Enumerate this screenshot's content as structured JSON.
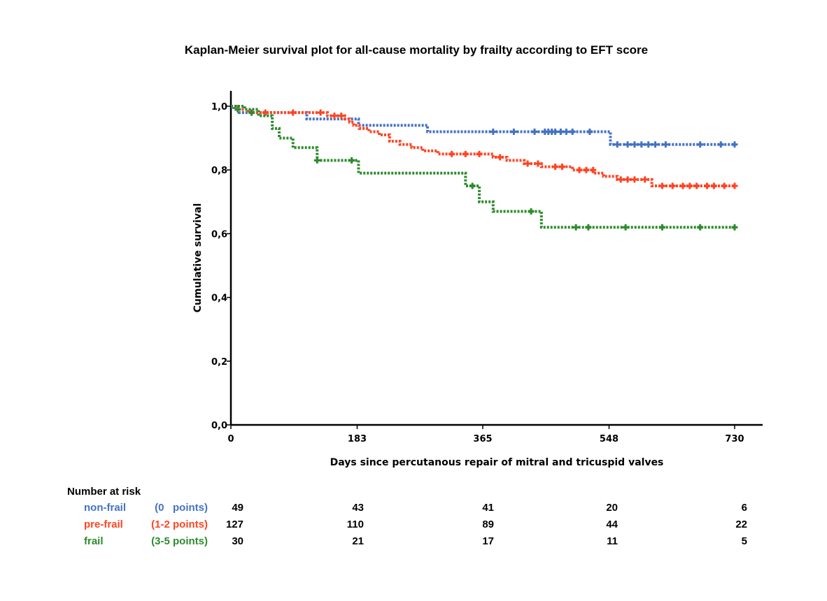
{
  "chart_data": {
    "type": "line",
    "subtype": "kaplan-meier-step",
    "title": "Kaplan-Meier survival plot for all-cause mortality by frailty according to EFT score",
    "xlabel": "Days since percutanous repair of mitral and tricuspid valves",
    "ylabel": "Cumulative survival",
    "xlim": [
      0,
      760
    ],
    "ylim": [
      0,
      1.04
    ],
    "x_ticks": [
      0,
      183,
      365,
      548,
      730
    ],
    "x_tick_labels": [
      "0",
      "183",
      "365",
      "548",
      "730"
    ],
    "y_ticks": [
      0,
      0.2,
      0.4,
      0.6,
      0.8,
      1.0
    ],
    "y_tick_labels": [
      "0,0",
      "0,2",
      "0,4",
      "0,6",
      "0,8",
      "1,0"
    ],
    "grid": false,
    "line_style": "dotted",
    "series": [
      {
        "key": "nonfrail",
        "color": "#4472C4",
        "steps": [
          [
            0,
            1.0
          ],
          [
            4,
            0.99
          ],
          [
            12,
            0.98
          ],
          [
            110,
            0.96
          ],
          [
            185,
            0.94
          ],
          [
            285,
            0.92
          ],
          [
            550,
            0.88
          ],
          [
            730,
            0.88
          ]
        ],
        "censored": [
          [
            380,
            0.92
          ],
          [
            410,
            0.92
          ],
          [
            440,
            0.92
          ],
          [
            455,
            0.92
          ],
          [
            460,
            0.92
          ],
          [
            465,
            0.92
          ],
          [
            470,
            0.92
          ],
          [
            478,
            0.92
          ],
          [
            486,
            0.92
          ],
          [
            495,
            0.92
          ],
          [
            520,
            0.92
          ],
          [
            560,
            0.88
          ],
          [
            575,
            0.88
          ],
          [
            585,
            0.88
          ],
          [
            595,
            0.88
          ],
          [
            605,
            0.88
          ],
          [
            615,
            0.88
          ],
          [
            630,
            0.88
          ],
          [
            680,
            0.88
          ],
          [
            710,
            0.88
          ],
          [
            730,
            0.88
          ]
        ]
      },
      {
        "key": "prefrail",
        "color": "#FF4422",
        "steps": [
          [
            0,
            1.0
          ],
          [
            8,
            0.99
          ],
          [
            25,
            0.98
          ],
          [
            140,
            0.97
          ],
          [
            165,
            0.96
          ],
          [
            172,
            0.95
          ],
          [
            178,
            0.94
          ],
          [
            186,
            0.93
          ],
          [
            200,
            0.92
          ],
          [
            215,
            0.91
          ],
          [
            230,
            0.89
          ],
          [
            245,
            0.88
          ],
          [
            262,
            0.87
          ],
          [
            278,
            0.86
          ],
          [
            300,
            0.85
          ],
          [
            380,
            0.84
          ],
          [
            400,
            0.83
          ],
          [
            425,
            0.82
          ],
          [
            450,
            0.81
          ],
          [
            495,
            0.8
          ],
          [
            525,
            0.79
          ],
          [
            540,
            0.78
          ],
          [
            560,
            0.77
          ],
          [
            610,
            0.75
          ],
          [
            730,
            0.75
          ]
        ],
        "censored": [
          [
            30,
            0.98
          ],
          [
            50,
            0.98
          ],
          [
            90,
            0.98
          ],
          [
            130,
            0.98
          ],
          [
            150,
            0.97
          ],
          [
            160,
            0.97
          ],
          [
            320,
            0.85
          ],
          [
            340,
            0.85
          ],
          [
            360,
            0.85
          ],
          [
            390,
            0.84
          ],
          [
            430,
            0.82
          ],
          [
            445,
            0.82
          ],
          [
            470,
            0.81
          ],
          [
            480,
            0.81
          ],
          [
            505,
            0.8
          ],
          [
            515,
            0.8
          ],
          [
            525,
            0.8
          ],
          [
            565,
            0.77
          ],
          [
            575,
            0.77
          ],
          [
            585,
            0.77
          ],
          [
            600,
            0.77
          ],
          [
            625,
            0.75
          ],
          [
            640,
            0.75
          ],
          [
            655,
            0.75
          ],
          [
            665,
            0.75
          ],
          [
            675,
            0.75
          ],
          [
            690,
            0.75
          ],
          [
            700,
            0.75
          ],
          [
            715,
            0.75
          ],
          [
            730,
            0.75
          ]
        ]
      },
      {
        "key": "frail",
        "color": "#2E8B2E",
        "steps": [
          [
            0,
            1.0
          ],
          [
            20,
            0.99
          ],
          [
            40,
            0.97
          ],
          [
            60,
            0.93
          ],
          [
            70,
            0.9
          ],
          [
            90,
            0.87
          ],
          [
            125,
            0.83
          ],
          [
            185,
            0.79
          ],
          [
            340,
            0.75
          ],
          [
            360,
            0.7
          ],
          [
            380,
            0.67
          ],
          [
            450,
            0.62
          ],
          [
            730,
            0.62
          ]
        ],
        "censored": [
          [
            10,
            0.99
          ],
          [
            30,
            0.98
          ],
          [
            125,
            0.83
          ],
          [
            175,
            0.83
          ],
          [
            350,
            0.75
          ],
          [
            435,
            0.67
          ],
          [
            500,
            0.62
          ],
          [
            518,
            0.62
          ],
          [
            572,
            0.62
          ],
          [
            625,
            0.62
          ],
          [
            680,
            0.62
          ],
          [
            730,
            0.62
          ]
        ]
      }
    ],
    "risk_table": {
      "header": "Number at risk",
      "rows": [
        {
          "key": "nonfrail",
          "label": "non-frail",
          "points": "(0   points)",
          "color": "#4472C4",
          "values": [
            "49",
            "43",
            "41",
            "20",
            "6"
          ]
        },
        {
          "key": "prefrail",
          "label": "pre-frail",
          "points": "(1-2 points)",
          "color": "#FF4422",
          "values": [
            "127",
            "110",
            "89",
            "44",
            "22"
          ]
        },
        {
          "key": "frail",
          "label": "frail",
          "points": "(3-5 points)",
          "color": "#2E8B2E",
          "values": [
            "30",
            "21",
            "17",
            "11",
            "5"
          ]
        }
      ]
    }
  }
}
